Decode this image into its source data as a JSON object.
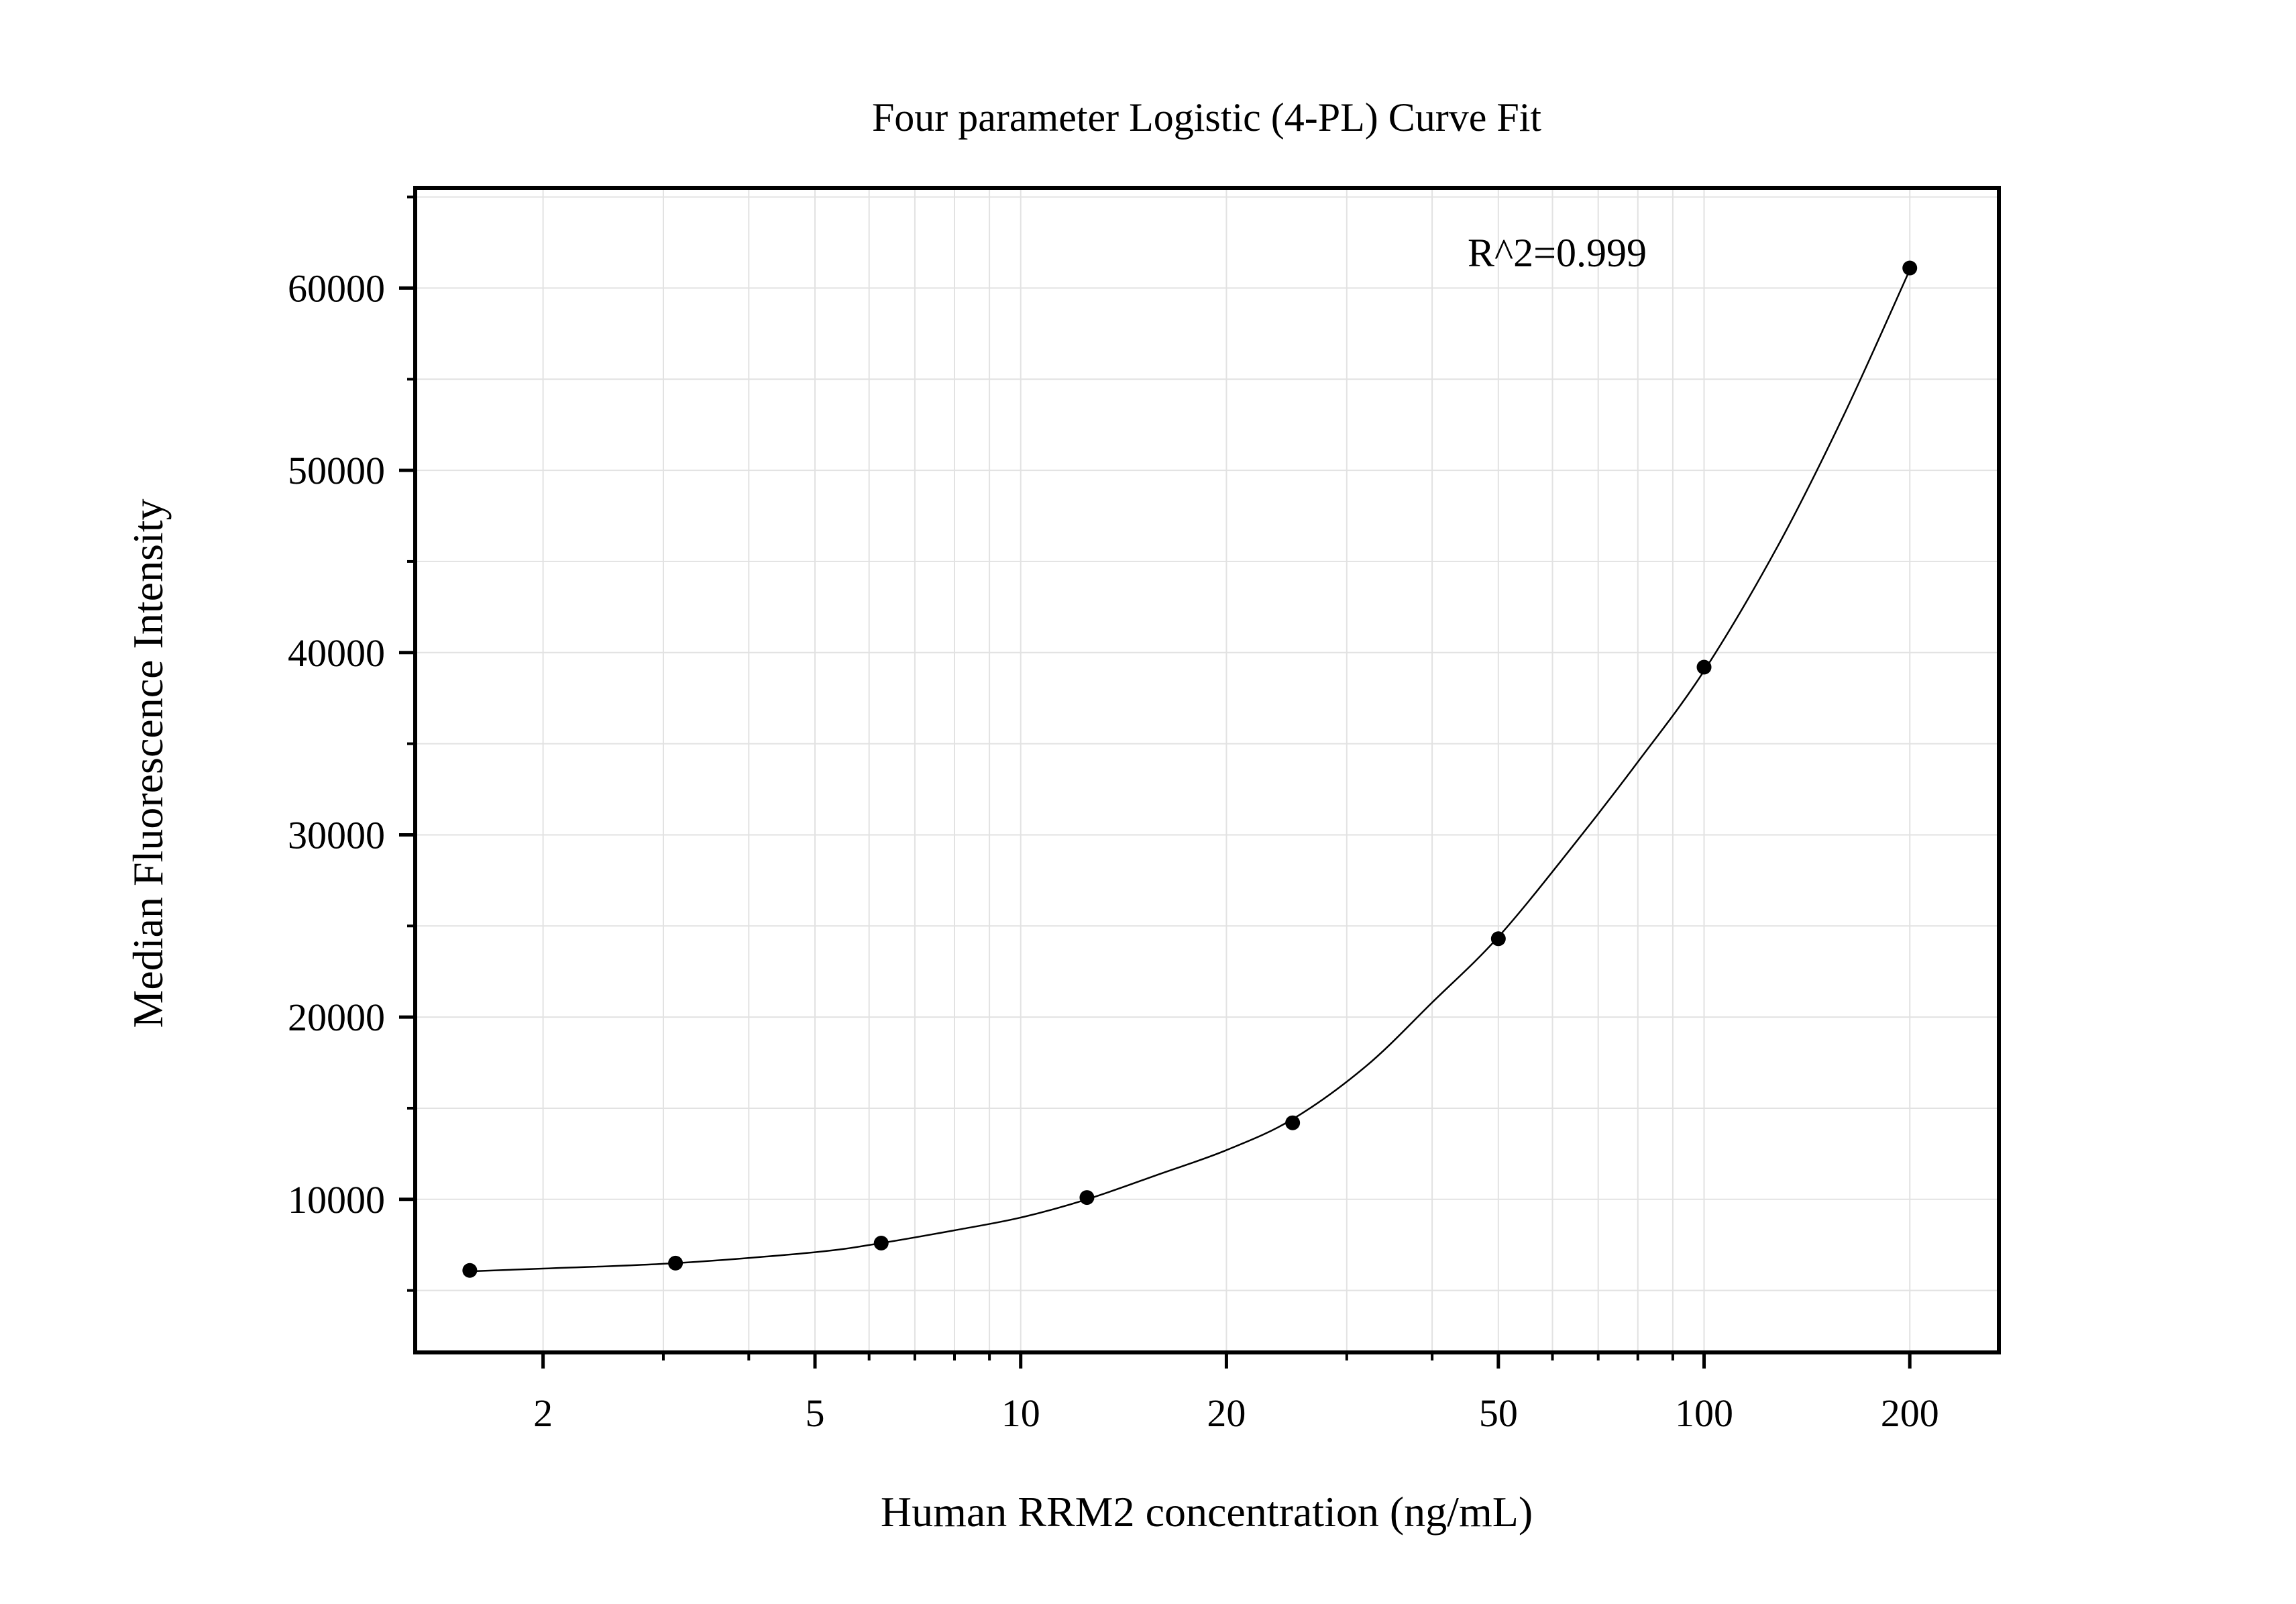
{
  "chart_data": {
    "type": "scatter",
    "title": "Four parameter Logistic (4-PL) Curve Fit",
    "xlabel": "Human RRM2 concentration (ng/mL)",
    "ylabel": "Median Fluorescence Intensity",
    "x_scale": "log",
    "xlim": [
      1.3,
      270
    ],
    "ylim": [
      1600,
      65500
    ],
    "x_ticks": [
      2,
      5,
      10,
      20,
      50,
      100,
      200
    ],
    "x_tick_labels": [
      "2",
      "5",
      "10",
      "20",
      "50",
      "100",
      "200"
    ],
    "y_ticks": [
      10000,
      20000,
      30000,
      40000,
      50000,
      60000
    ],
    "y_tick_labels": [
      "10000",
      "20000",
      "30000",
      "40000",
      "50000",
      "60000"
    ],
    "grid": true,
    "annotation": "R^2=0.999",
    "series": [
      {
        "x": [
          1.5625,
          3.125,
          6.25,
          12.5,
          25,
          50,
          100,
          200
        ],
        "y": [
          6100,
          6500,
          7600,
          10100,
          14200,
          24300,
          39200,
          61100
        ]
      }
    ],
    "fit_curve": {
      "x": [
        1.5625,
        2,
        3.125,
        5,
        6.25,
        8,
        10,
        12.5,
        16,
        20,
        25,
        32,
        40,
        50,
        64,
        80,
        100,
        128,
        160,
        200
      ],
      "y": [
        6050,
        6200,
        6500,
        7100,
        7600,
        8300,
        9000,
        10000,
        11400,
        12700,
        14400,
        17300,
        20800,
        24400,
        29300,
        34000,
        39000,
        45800,
        53000,
        61000
      ]
    },
    "colors": {
      "points": "#000000",
      "curve": "#000000",
      "grid": "#e2e2e2",
      "frame": "#000000"
    }
  }
}
